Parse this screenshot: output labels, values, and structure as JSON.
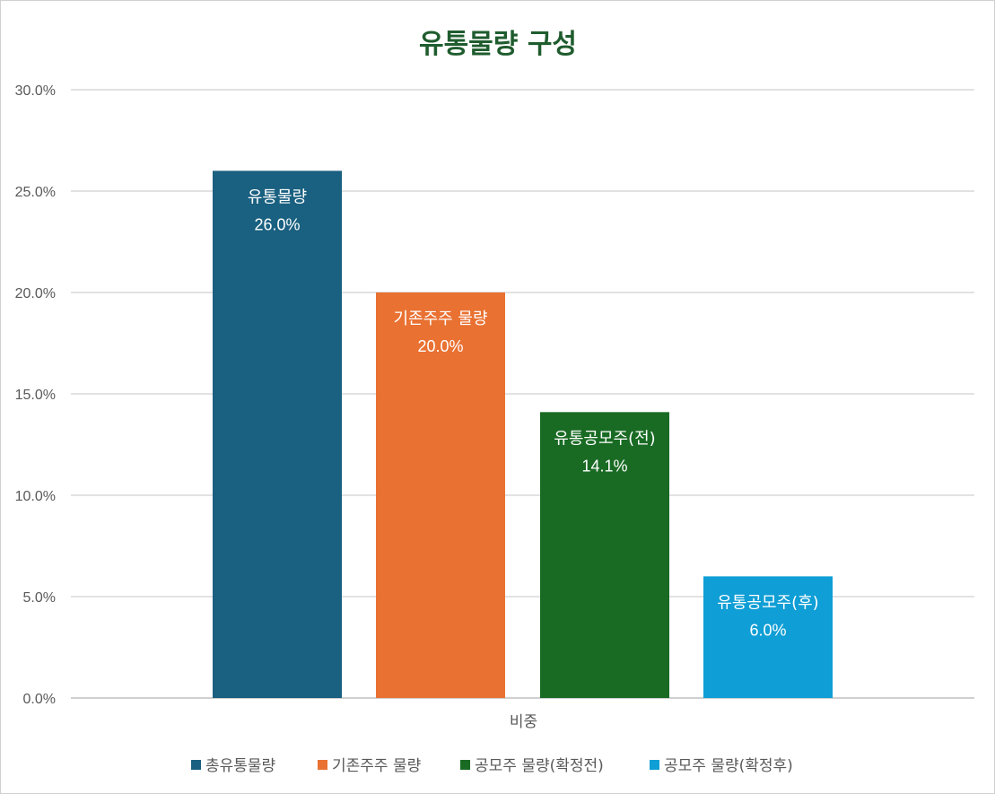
{
  "chart_data": {
    "type": "bar",
    "title": "유통물량 구성",
    "categories": [
      "비중"
    ],
    "series": [
      {
        "name": "총유통물량",
        "value_label": "유통물량",
        "values": [
          26.0
        ],
        "color": "#1a6080"
      },
      {
        "name": "기존주주 물량",
        "value_label": "기존주주 물량",
        "values": [
          20.0
        ],
        "color": "#e97132"
      },
      {
        "name": "공모주 물량(확정전)",
        "value_label": "유통공모주(전)",
        "values": [
          14.1
        ],
        "color": "#196b24"
      },
      {
        "name": "공모주 물량(확정후)",
        "value_label": "유통공모주(후)",
        "values": [
          6.0
        ],
        "color": "#0f9ed5"
      }
    ],
    "ylim": [
      0,
      30
    ],
    "yticks": [
      0,
      5,
      10,
      15,
      20,
      25,
      30
    ],
    "ytick_format": "percent_1dp",
    "xlabel": "",
    "ylabel": "",
    "grid": true,
    "legend_position": "bottom",
    "title_color": "#1f5c2e"
  }
}
